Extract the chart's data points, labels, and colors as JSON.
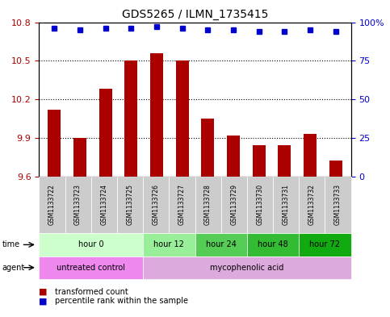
{
  "title": "GDS5265 / ILMN_1735415",
  "samples": [
    "GSM1133722",
    "GSM1133723",
    "GSM1133724",
    "GSM1133725",
    "GSM1133726",
    "GSM1133727",
    "GSM1133728",
    "GSM1133729",
    "GSM1133730",
    "GSM1133731",
    "GSM1133732",
    "GSM1133733"
  ],
  "bar_values": [
    10.12,
    9.9,
    10.28,
    10.5,
    10.56,
    10.5,
    10.05,
    9.92,
    9.84,
    9.84,
    9.93,
    9.72
  ],
  "percentile_values": [
    96,
    95,
    96,
    96,
    97,
    96,
    95,
    95,
    94,
    94,
    95,
    94
  ],
  "bar_color": "#aa0000",
  "percentile_color": "#0000cc",
  "ylim_left": [
    9.6,
    10.8
  ],
  "ylim_right": [
    0,
    100
  ],
  "yticks_left": [
    9.6,
    9.9,
    10.2,
    10.5,
    10.8
  ],
  "yticks_right": [
    0,
    25,
    50,
    75,
    100
  ],
  "ytick_labels_left": [
    "9.6",
    "9.9",
    "10.2",
    "10.5",
    "10.8"
  ],
  "ytick_labels_right": [
    "0",
    "25",
    "50",
    "75",
    "100%"
  ],
  "dotted_lines": [
    9.9,
    10.2,
    10.5
  ],
  "time_groups": [
    {
      "label": "hour 0",
      "start": 0,
      "end": 4,
      "color": "#ccffcc"
    },
    {
      "label": "hour 12",
      "start": 4,
      "end": 6,
      "color": "#99ee99"
    },
    {
      "label": "hour 24",
      "start": 6,
      "end": 8,
      "color": "#55cc55"
    },
    {
      "label": "hour 48",
      "start": 8,
      "end": 10,
      "color": "#33bb33"
    },
    {
      "label": "hour 72",
      "start": 10,
      "end": 12,
      "color": "#11aa11"
    }
  ],
  "agent_groups": [
    {
      "label": "untreated control",
      "start": 0,
      "end": 4,
      "color": "#ee88ee"
    },
    {
      "label": "mycophenolic acid",
      "start": 4,
      "end": 12,
      "color": "#ddaadd"
    }
  ],
  "sample_bg_color": "#cccccc",
  "legend_items": [
    {
      "label": "transformed count",
      "color": "#aa0000"
    },
    {
      "label": "percentile rank within the sample",
      "color": "#0000cc"
    }
  ],
  "time_row_label": "time",
  "agent_row_label": "agent",
  "background_color": "#ffffff"
}
